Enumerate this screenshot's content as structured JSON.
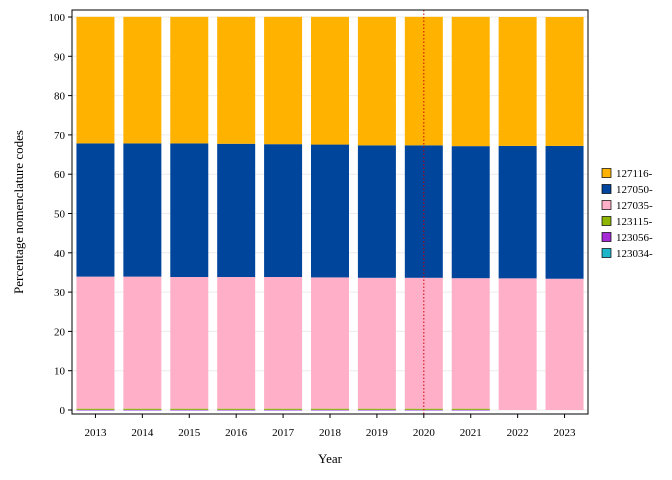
{
  "chart_data": {
    "type": "bar",
    "stacked": true,
    "categories": [
      "2013",
      "2014",
      "2015",
      "2016",
      "2017",
      "2018",
      "2019",
      "2020",
      "2021",
      "2022",
      "2023"
    ],
    "series": [
      {
        "name": "123034-",
        "color": "#1fb5c8",
        "values": [
          0.02,
          0.02,
          0.02,
          0.02,
          0.02,
          0.02,
          0.02,
          0.02,
          0.02,
          0.0,
          0.0
        ]
      },
      {
        "name": "123056-",
        "color": "#a52ad6",
        "values": [
          0.02,
          0.02,
          0.02,
          0.02,
          0.02,
          0.02,
          0.02,
          0.02,
          0.02,
          0.0,
          0.0
        ]
      },
      {
        "name": "123115-",
        "color": "#8cb400",
        "values": [
          0.3,
          0.3,
          0.3,
          0.3,
          0.3,
          0.3,
          0.3,
          0.3,
          0.3,
          0.0,
          0.0
        ]
      },
      {
        "name": "127035-",
        "color": "#ffb0c8",
        "values": [
          33.6,
          33.6,
          33.5,
          33.5,
          33.5,
          33.4,
          33.3,
          33.3,
          33.2,
          33.5,
          33.4
        ]
      },
      {
        "name": "127050-",
        "color": "#00459c",
        "values": [
          33.9,
          33.9,
          34.0,
          33.9,
          33.8,
          33.8,
          33.7,
          33.7,
          33.6,
          33.7,
          33.8
        ]
      },
      {
        "name": "127116-",
        "color": "#ffb200",
        "values": [
          32.2,
          32.2,
          32.2,
          32.3,
          32.4,
          32.5,
          32.7,
          32.7,
          32.9,
          32.8,
          32.8
        ]
      }
    ],
    "legend_order": [
      "127116-",
      "127050-",
      "127035-",
      "123115-",
      "123056-",
      "123034-"
    ],
    "legend_position": "right",
    "xlabel": "Year",
    "ylabel": "Percentage nomenclature codes",
    "ylim": [
      0,
      100
    ],
    "yticks": [
      0,
      10,
      20,
      30,
      40,
      50,
      60,
      70,
      80,
      90,
      100
    ],
    "grid": true,
    "reference_line": {
      "x": "2020",
      "color": "#cc0000",
      "style": "dotted"
    }
  }
}
